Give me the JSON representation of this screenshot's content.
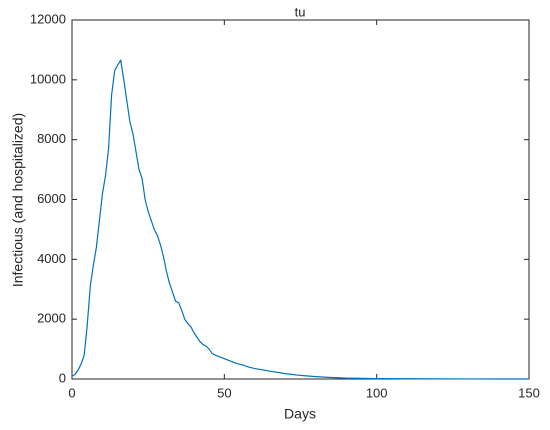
{
  "chart_data": {
    "type": "line",
    "title": "tu",
    "x_label": "Days",
    "y_label": "Infectious (and hospitalized)",
    "x": [
      0,
      1,
      2,
      3,
      4,
      5,
      6,
      7,
      8,
      9,
      10,
      11,
      12,
      13,
      14,
      15,
      16,
      17,
      18,
      19,
      20,
      21,
      22,
      23,
      24,
      25,
      26,
      27,
      28,
      29,
      30,
      31,
      32,
      33,
      34,
      35,
      36,
      37,
      38,
      39,
      40,
      41,
      42,
      43,
      44,
      45,
      46,
      47,
      48,
      49,
      50,
      52,
      54,
      56,
      58,
      60,
      65,
      70,
      75,
      80,
      85,
      90,
      100,
      110,
      120,
      130,
      140,
      150
    ],
    "series": [
      {
        "color": "#0072bd",
        "values": [
          100,
          150,
          300,
          500,
          800,
          1800,
          3100,
          3800,
          4400,
          5300,
          6200,
          6800,
          7700,
          9500,
          10300,
          10500,
          10650,
          10000,
          9300,
          8600,
          8200,
          7600,
          7000,
          6700,
          6000,
          5600,
          5300,
          5000,
          4800,
          4500,
          4100,
          3600,
          3200,
          2900,
          2600,
          2550,
          2300,
          2000,
          1850,
          1750,
          1550,
          1400,
          1250,
          1150,
          1100,
          1000,
          850,
          800,
          760,
          720,
          680,
          600,
          520,
          470,
          400,
          350,
          260,
          180,
          120,
          80,
          50,
          30,
          15,
          8,
          4,
          2,
          1,
          0
        ]
      }
    ],
    "xlim": [
      0,
      150
    ],
    "xticks": [
      0,
      50,
      100,
      150
    ],
    "ylim": [
      0,
      12000
    ],
    "yticks": [
      0,
      2000,
      4000,
      6000,
      8000,
      10000,
      12000
    ]
  }
}
